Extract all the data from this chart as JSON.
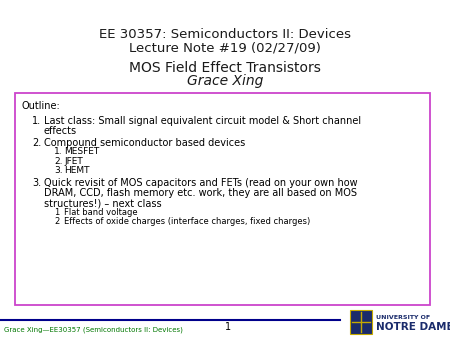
{
  "title_line1": "EE 30357: Semiconductors II: Devices",
  "title_line2": "Lecture Note #19 (02/27/09)",
  "subtitle_line1": "MOS Field Effect Transistors",
  "subtitle_line2": "Grace Xing",
  "outline_title": "Outline:",
  "sub_items_2": [
    "MESFET",
    "JFET",
    "HEMT"
  ],
  "sub_items_3": [
    "Flat band voltage",
    "Effects of oxide charges (interface charges, fixed charges)"
  ],
  "footer_left": "Grace Xing—EE30357 (Semiconductors II: Devices)",
  "footer_page": "1",
  "bg_color": "#ffffff",
  "title_color": "#1a1a1a",
  "box_border_color": "#cc44cc",
  "footer_color": "#007700",
  "footer_line_color": "#00008b",
  "nd_color": "#1a2b6b"
}
